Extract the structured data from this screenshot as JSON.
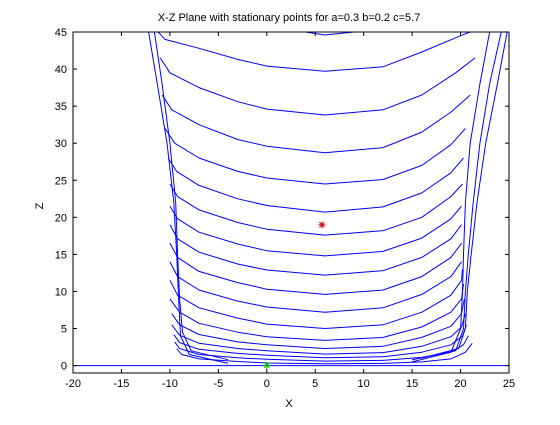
{
  "chart_data": {
    "type": "line",
    "title": "X-Z Plane with stationary points for a=0.3 b=0.2 c=5.7",
    "xlabel": "X",
    "ylabel": "Z",
    "xlim": [
      -20,
      25
    ],
    "ylim": [
      -1,
      45
    ],
    "xticks": [
      -20,
      -15,
      -10,
      -5,
      0,
      5,
      10,
      15,
      20,
      25
    ],
    "yticks": [
      0,
      5,
      10,
      15,
      20,
      25,
      30,
      35,
      40,
      45
    ],
    "grid": false,
    "line_color": "#0000ff",
    "series": [
      {
        "values": [
          [
            -20,
            0
          ],
          [
            -10,
            0
          ],
          [
            0,
            0
          ],
          [
            10,
            0
          ],
          [
            25,
            0
          ]
        ]
      },
      {
        "values": [
          [
            -9.3,
            2.3
          ],
          [
            -8.8,
            1.5
          ],
          [
            -7,
            0.9
          ],
          [
            -3,
            0.55
          ],
          [
            0,
            0.35
          ],
          [
            6,
            0.25
          ],
          [
            12,
            0.3
          ],
          [
            16,
            0.5
          ],
          [
            19,
            0.9
          ],
          [
            20.5,
            1.8
          ],
          [
            21.2,
            3
          ]
        ]
      },
      {
        "values": [
          [
            -9.5,
            3.2
          ],
          [
            -9,
            2.3
          ],
          [
            -7,
            1.5
          ],
          [
            -3,
            1.05
          ],
          [
            0,
            0.85
          ],
          [
            6,
            0.6
          ],
          [
            12,
            0.7
          ],
          [
            16,
            1.1
          ],
          [
            19,
            1.8
          ],
          [
            20.3,
            2.8
          ],
          [
            20.8,
            4
          ]
        ]
      },
      {
        "values": [
          [
            -9.6,
            4.2
          ],
          [
            -9,
            3.1
          ],
          [
            -7,
            2.2
          ],
          [
            -3,
            1.65
          ],
          [
            0,
            1.4
          ],
          [
            6,
            1.05
          ],
          [
            12,
            1.2
          ],
          [
            16,
            1.8
          ],
          [
            19,
            2.8
          ],
          [
            20.2,
            4
          ],
          [
            20.6,
            5.5
          ]
        ]
      },
      {
        "values": [
          [
            -9.8,
            5.5
          ],
          [
            -9,
            4.1
          ],
          [
            -7,
            3
          ],
          [
            -3,
            2.3
          ],
          [
            0,
            2
          ],
          [
            6,
            1.55
          ],
          [
            12,
            1.75
          ],
          [
            16,
            2.6
          ],
          [
            19,
            3.9
          ],
          [
            20.1,
            5.2
          ],
          [
            20.5,
            7
          ]
        ]
      },
      {
        "values": [
          [
            -9.8,
            7
          ],
          [
            -9,
            5.5
          ],
          [
            -7,
            4.2
          ],
          [
            -3,
            3.2
          ],
          [
            0,
            2.8
          ],
          [
            6,
            2.3
          ],
          [
            12,
            2.6
          ],
          [
            16,
            3.8
          ],
          [
            19,
            5.3
          ],
          [
            20.1,
            7
          ],
          [
            20.4,
            9
          ]
        ]
      },
      {
        "values": [
          [
            -10,
            9
          ],
          [
            -9,
            7.2
          ],
          [
            -7,
            5.7
          ],
          [
            -3,
            4.5
          ],
          [
            0,
            3.9
          ],
          [
            6,
            3.4
          ],
          [
            12,
            3.8
          ],
          [
            16,
            5.2
          ],
          [
            19,
            7.2
          ],
          [
            20.1,
            9
          ],
          [
            20.3,
            11
          ]
        ]
      },
      {
        "values": [
          [
            -10,
            11.5
          ],
          [
            -9.2,
            9.5
          ],
          [
            -7,
            7.8
          ],
          [
            -3,
            6.4
          ],
          [
            0,
            5.6
          ],
          [
            6,
            5
          ],
          [
            12,
            5.5
          ],
          [
            16,
            7.2
          ],
          [
            19,
            9.5
          ],
          [
            20.1,
            11.5
          ],
          [
            20.2,
            13
          ]
        ]
      },
      {
        "values": [
          [
            -10,
            14
          ],
          [
            -9.2,
            12
          ],
          [
            -7,
            10.2
          ],
          [
            -3,
            8.7
          ],
          [
            0,
            7.9
          ],
          [
            6,
            7.2
          ],
          [
            12,
            7.8
          ],
          [
            16,
            9.6
          ],
          [
            19,
            12
          ],
          [
            20.1,
            14
          ]
        ]
      },
      {
        "values": [
          [
            -10,
            16.5
          ],
          [
            -9.2,
            14.6
          ],
          [
            -7,
            12.7
          ],
          [
            -3,
            11.2
          ],
          [
            0,
            10.3
          ],
          [
            6,
            9.6
          ],
          [
            12,
            10.2
          ],
          [
            16,
            12
          ],
          [
            19,
            14.6
          ],
          [
            20.1,
            16.5
          ]
        ]
      },
      {
        "values": [
          [
            -10,
            19
          ],
          [
            -9.2,
            17.1
          ],
          [
            -7,
            15.3
          ],
          [
            -3,
            13.7
          ],
          [
            0,
            12.9
          ],
          [
            6,
            12.2
          ],
          [
            12,
            12.8
          ],
          [
            16,
            14.6
          ],
          [
            19,
            17.1
          ],
          [
            20.1,
            19
          ]
        ]
      },
      {
        "values": [
          [
            -10,
            21.5
          ],
          [
            -9.2,
            19.8
          ],
          [
            -7,
            18
          ],
          [
            -3,
            16.4
          ],
          [
            0,
            15.5
          ],
          [
            6,
            14.8
          ],
          [
            12,
            15.4
          ],
          [
            16,
            17.2
          ],
          [
            19,
            19.8
          ],
          [
            20.1,
            21.5
          ]
        ]
      },
      {
        "values": [
          [
            -10,
            24.5
          ],
          [
            -9.2,
            22.8
          ],
          [
            -7,
            21
          ],
          [
            -3,
            19.3
          ],
          [
            0,
            18.4
          ],
          [
            6,
            17.6
          ],
          [
            12,
            18.2
          ],
          [
            16,
            20
          ],
          [
            19,
            22.8
          ],
          [
            20.2,
            24.5
          ]
        ]
      },
      {
        "values": [
          [
            -10.2,
            28
          ],
          [
            -9.3,
            26.2
          ],
          [
            -7,
            24.3
          ],
          [
            -3,
            22.5
          ],
          [
            0,
            21.6
          ],
          [
            6,
            20.7
          ],
          [
            12,
            21.4
          ],
          [
            16,
            23.3
          ],
          [
            19,
            26
          ],
          [
            20.3,
            28
          ]
        ]
      },
      {
        "values": [
          [
            -10.5,
            32
          ],
          [
            -9.5,
            30
          ],
          [
            -7,
            28
          ],
          [
            -3,
            26.2
          ],
          [
            0,
            25.3
          ],
          [
            6,
            24.5
          ],
          [
            12,
            25.1
          ],
          [
            16,
            27
          ],
          [
            19,
            29.8
          ],
          [
            20.5,
            32
          ]
        ]
      },
      {
        "values": [
          [
            -10.8,
            36.5
          ],
          [
            -9.8,
            34.5
          ],
          [
            -7,
            32.5
          ],
          [
            -3,
            30.5
          ],
          [
            0,
            29.6
          ],
          [
            6,
            28.7
          ],
          [
            12,
            29.4
          ],
          [
            16,
            31.5
          ],
          [
            19,
            34.2
          ],
          [
            21,
            36.5
          ]
        ]
      },
      {
        "values": [
          [
            -11,
            41.5
          ],
          [
            -10,
            39.5
          ],
          [
            -7,
            37.5
          ],
          [
            -3,
            35.6
          ],
          [
            0,
            34.6
          ],
          [
            6,
            33.8
          ],
          [
            12,
            34.5
          ],
          [
            16,
            36.5
          ],
          [
            19.5,
            39.5
          ],
          [
            21.5,
            41.5
          ]
        ]
      },
      {
        "values": [
          [
            -11.2,
            45
          ],
          [
            -10.5,
            44
          ],
          [
            -7,
            42.8
          ],
          [
            -3,
            41.3
          ],
          [
            0,
            40.4
          ],
          [
            6,
            39.7
          ],
          [
            12,
            40.3
          ],
          [
            16,
            42.3
          ],
          [
            20,
            44.5
          ],
          [
            21,
            45
          ]
        ]
      },
      {
        "values": [
          [
            4,
            45
          ],
          [
            6,
            44.6
          ],
          [
            9,
            45
          ]
        ]
      },
      {
        "values": [
          [
            -12.2,
            45
          ],
          [
            -11.3,
            38
          ],
          [
            -10.3,
            30
          ],
          [
            -9.6,
            22
          ],
          [
            -9.3,
            15
          ],
          [
            -9.1,
            9
          ],
          [
            -8.9,
            4
          ],
          [
            -8,
            1.5
          ],
          [
            -4,
            0.3
          ]
        ]
      },
      {
        "values": [
          [
            -11.6,
            45
          ],
          [
            -10.8,
            38
          ],
          [
            -10,
            30
          ],
          [
            -9.4,
            22
          ],
          [
            -9.2,
            15
          ],
          [
            -9,
            9
          ],
          [
            -8.7,
            4.5
          ],
          [
            -7.8,
            2
          ],
          [
            -4,
            0.8
          ]
        ]
      },
      {
        "values": [
          [
            23,
            45
          ],
          [
            22,
            38
          ],
          [
            21,
            30
          ],
          [
            20.5,
            22
          ],
          [
            20.3,
            15
          ],
          [
            20.2,
            10
          ],
          [
            20,
            5
          ],
          [
            19,
            1.8
          ],
          [
            15,
            0.5
          ]
        ]
      },
      {
        "values": [
          [
            24.2,
            45
          ],
          [
            23,
            38
          ],
          [
            22,
            30
          ],
          [
            21.3,
            22
          ],
          [
            20.8,
            15
          ],
          [
            20.5,
            10
          ],
          [
            20.3,
            5
          ],
          [
            19.5,
            2
          ],
          [
            15,
            0.8
          ]
        ]
      },
      {
        "values": [
          [
            24.8,
            45
          ],
          [
            23.8,
            38
          ],
          [
            22.6,
            30
          ],
          [
            21.7,
            22
          ],
          [
            21.1,
            15
          ],
          [
            20.7,
            10
          ],
          [
            20.5,
            5
          ],
          [
            19.8,
            2.3
          ],
          [
            16,
            1
          ]
        ]
      }
    ],
    "stationary_points": [
      {
        "x": 5.69,
        "z": 18.99,
        "marker": "*",
        "color": "#d00000"
      },
      {
        "x": 0.007,
        "z": 0.035,
        "marker": "*",
        "color": "#00c000"
      }
    ]
  }
}
